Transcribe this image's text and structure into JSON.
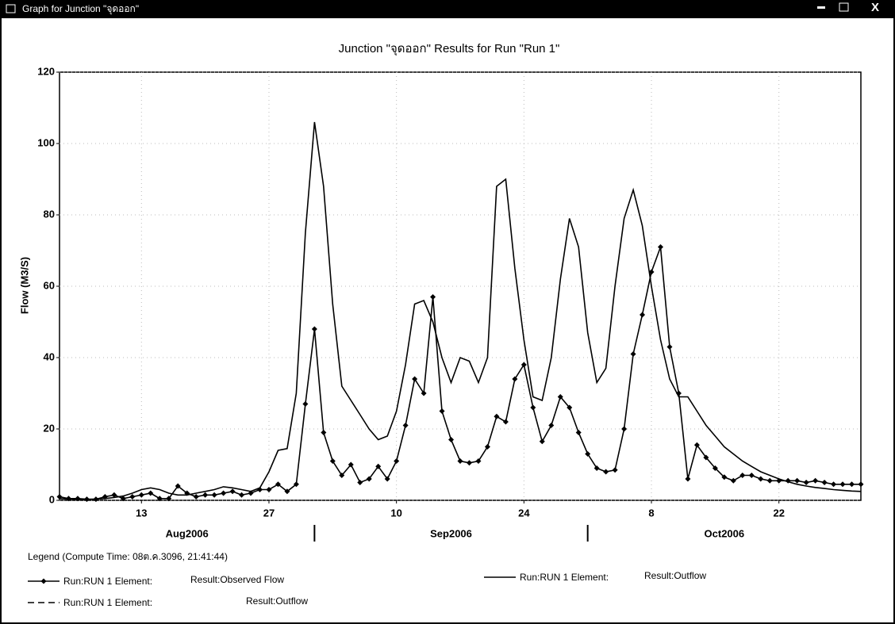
{
  "window_title": "Graph for Junction \"จุดออก\"",
  "chart_data": {
    "type": "line",
    "title": "Junction \"จุดออก\" Results for Run \"Run 1\"",
    "y_label": "Flow (M3/S)",
    "x": [
      "2006-08-04",
      "2006-08-05",
      "2006-08-06",
      "2006-08-07",
      "2006-08-08",
      "2006-08-09",
      "2006-08-10",
      "2006-08-11",
      "2006-08-12",
      "2006-08-13",
      "2006-08-14",
      "2006-08-15",
      "2006-08-16",
      "2006-08-17",
      "2006-08-18",
      "2006-08-19",
      "2006-08-20",
      "2006-08-21",
      "2006-08-22",
      "2006-08-23",
      "2006-08-24",
      "2006-08-25",
      "2006-08-26",
      "2006-08-27",
      "2006-08-28",
      "2006-08-29",
      "2006-08-30",
      "2006-08-31",
      "2006-09-01",
      "2006-09-02",
      "2006-09-03",
      "2006-09-04",
      "2006-09-05",
      "2006-09-06",
      "2006-09-07",
      "2006-09-08",
      "2006-09-09",
      "2006-09-10",
      "2006-09-11",
      "2006-09-12",
      "2006-09-13",
      "2006-09-14",
      "2006-09-15",
      "2006-09-16",
      "2006-09-17",
      "2006-09-18",
      "2006-09-19",
      "2006-09-20",
      "2006-09-21",
      "2006-09-22",
      "2006-09-23",
      "2006-09-24",
      "2006-09-25",
      "2006-09-26",
      "2006-09-27",
      "2006-09-28",
      "2006-09-29",
      "2006-09-30",
      "2006-10-01",
      "2006-10-02",
      "2006-10-03",
      "2006-10-04",
      "2006-10-05",
      "2006-10-06",
      "2006-10-07",
      "2006-10-08",
      "2006-10-09",
      "2006-10-10",
      "2006-10-11",
      "2006-10-12",
      "2006-10-13",
      "2006-10-14",
      "2006-10-15",
      "2006-10-16",
      "2006-10-17",
      "2006-10-18",
      "2006-10-19",
      "2006-10-20",
      "2006-10-21",
      "2006-10-22",
      "2006-10-23",
      "2006-10-24",
      "2006-10-25",
      "2006-10-26",
      "2006-10-27",
      "2006-10-28",
      "2006-10-29",
      "2006-10-30",
      "2006-10-31"
    ],
    "series": [
      {
        "name": "Run:RUN 1 Element:",
        "result": "Result:Observed Flow",
        "color": "#000000",
        "marker": true,
        "values": [
          1,
          0.5,
          0.5,
          0.3,
          0.3,
          1,
          1.5,
          0.5,
          1,
          1.5,
          2,
          0.5,
          0.5,
          4,
          2,
          1,
          1.5,
          1.5,
          2,
          2.5,
          1.5,
          2,
          3,
          3,
          4.5,
          2.5,
          4.5,
          27,
          48,
          19,
          11,
          7,
          10,
          5,
          6,
          9.5,
          6,
          11,
          21,
          34,
          30,
          57,
          25,
          17,
          11,
          10.5,
          11,
          15,
          23.5,
          22,
          34,
          38,
          26,
          16.5,
          21,
          29,
          26,
          19,
          13,
          9,
          8,
          8.5,
          20,
          41,
          52,
          64,
          71,
          43,
          30,
          6,
          15.5,
          12,
          9,
          6.5,
          5.5,
          7,
          7,
          6,
          5.5,
          5.5,
          5.5,
          5.5,
          5,
          5.5,
          5,
          4.5,
          4.5,
          4.5,
          4.5
        ]
      },
      {
        "name": "Run:RUN 1 Element:",
        "result": "Result:Outflow",
        "color": "#000000",
        "marker": false,
        "values": [
          0.5,
          0.3,
          0.2,
          0.2,
          0.3,
          0.5,
          0.8,
          1.2,
          2,
          3,
          3.5,
          3,
          2,
          1.5,
          1.5,
          2,
          2.5,
          3,
          3.8,
          3.5,
          3,
          2.5,
          3.5,
          8,
          14,
          14.5,
          30,
          75,
          106,
          88,
          55,
          32,
          28,
          24,
          20,
          17,
          18,
          25,
          38,
          55,
          56,
          50,
          40,
          33,
          40,
          39,
          33,
          40,
          88,
          90,
          65,
          45,
          29,
          28,
          40,
          62,
          79,
          71,
          47,
          33,
          37,
          60,
          79,
          87,
          77,
          60,
          45,
          34,
          29,
          29,
          25,
          21,
          18,
          15,
          13,
          11,
          9.5,
          8,
          7,
          6,
          5.2,
          4.5,
          4,
          3.6,
          3.3,
          3,
          2.8,
          2.6,
          2.5
        ]
      }
    ],
    "extra_legend": [
      {
        "name": "Run:RUN 1 Element:",
        "result": "Result:Outflow",
        "dash": true
      }
    ],
    "legend_title": "Legend (Compute Time: 08ต.ค.3096, 21:41:44)",
    "xlim": [
      "2006-08-04",
      "2006-10-31"
    ],
    "xticks": [
      {
        "value": "2006-08-13",
        "label": "13"
      },
      {
        "value": "2006-08-27",
        "label": "27"
      },
      {
        "value": "2006-09-10",
        "label": "10"
      },
      {
        "value": "2006-09-24",
        "label": "24"
      },
      {
        "value": "2006-10-08",
        "label": "8"
      },
      {
        "value": "2006-10-22",
        "label": "22"
      }
    ],
    "months": [
      "Aug2006",
      "Sep2006",
      "Oct2006"
    ],
    "ylim": [
      0,
      120
    ],
    "yticks": [
      0,
      20,
      40,
      60,
      80,
      100,
      120
    ],
    "grid": true
  }
}
